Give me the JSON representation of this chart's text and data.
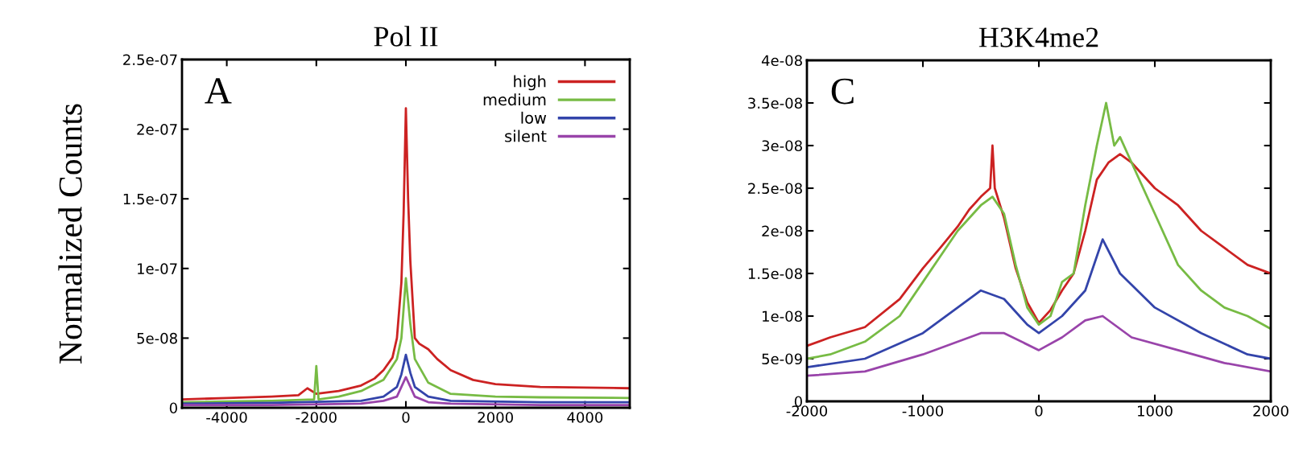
{
  "chart_data": [
    {
      "type": "line",
      "title": "Pol II",
      "ylabel": "Normalized Counts",
      "annotations": [
        "A"
      ],
      "legend": "top right",
      "grid": false,
      "xlim": [
        -5000,
        5000
      ],
      "xticks": [
        -4000,
        -2000,
        0,
        2000,
        4000
      ],
      "ylim": [
        0,
        2.5e-07
      ],
      "yticks": [
        {
          "value": 0,
          "label": "0"
        },
        {
          "value": 5e-08,
          "label": "5e-08"
        },
        {
          "value": 1e-07,
          "label": "1e-07"
        },
        {
          "value": 1.5e-07,
          "label": "1.5e-07"
        },
        {
          "value": 2e-07,
          "label": "2e-07"
        },
        {
          "value": 2.5e-07,
          "label": "2.5e-07"
        }
      ],
      "series": [
        {
          "name": "high",
          "color": "#cc2222",
          "x": [
            -5000,
            -4000,
            -3000,
            -2400,
            -2200,
            -2000,
            -1500,
            -1000,
            -700,
            -500,
            -300,
            -200,
            -100,
            -50,
            0,
            50,
            100,
            200,
            300,
            500,
            700,
            1000,
            1500,
            2000,
            3000,
            4000,
            5000
          ],
          "values": [
            6e-09,
            7e-09,
            8e-09,
            9e-09,
            1.4e-08,
            1e-08,
            1.2e-08,
            1.6e-08,
            2.1e-08,
            2.7e-08,
            3.6e-08,
            5e-08,
            9e-08,
            1.4e-07,
            2.15e-07,
            1.5e-07,
            1.05e-07,
            5e-08,
            4.6e-08,
            4.2e-08,
            3.5e-08,
            2.7e-08,
            2e-08,
            1.7e-08,
            1.5e-08,
            1.45e-08,
            1.4e-08
          ]
        },
        {
          "name": "medium",
          "color": "#77bb44",
          "x": [
            -5000,
            -4000,
            -3000,
            -2050,
            -2000,
            -1950,
            -1500,
            -1000,
            -500,
            -200,
            -100,
            0,
            100,
            200,
            500,
            1000,
            2000,
            3000,
            5000
          ],
          "values": [
            4e-09,
            4.5e-09,
            5e-09,
            6e-09,
            3e-08,
            6e-09,
            8e-09,
            1.2e-08,
            2e-08,
            3.5e-08,
            5e-08,
            9.3e-08,
            6e-08,
            3.5e-08,
            1.8e-08,
            1e-08,
            8e-09,
            7.5e-09,
            7e-09
          ]
        },
        {
          "name": "low",
          "color": "#3344aa",
          "x": [
            -5000,
            -3000,
            -1000,
            -500,
            -200,
            -100,
            0,
            100,
            200,
            500,
            1000,
            3000,
            5000
          ],
          "values": [
            3e-09,
            3.5e-09,
            5e-09,
            8e-09,
            1.5e-08,
            2.4e-08,
            3.8e-08,
            2.5e-08,
            1.5e-08,
            8e-09,
            5e-09,
            4e-09,
            4e-09
          ]
        },
        {
          "name": "silent",
          "color": "#9944aa",
          "x": [
            -5000,
            -3000,
            -1000,
            -500,
            -200,
            0,
            200,
            500,
            1000,
            3000,
            5000
          ],
          "values": [
            2e-09,
            2e-09,
            3e-09,
            5e-09,
            8e-09,
            2.2e-08,
            8e-09,
            4e-09,
            3e-09,
            2e-09,
            2e-09
          ]
        }
      ]
    },
    {
      "type": "line",
      "title": "H3K4me2",
      "annotations": [
        "C"
      ],
      "grid": false,
      "xlim": [
        -2000,
        2000
      ],
      "xticks": [
        -2000,
        -1000,
        0,
        1000,
        2000
      ],
      "ylim": [
        0,
        4e-08
      ],
      "yticks": [
        {
          "value": 0,
          "label": "0"
        },
        {
          "value": 5e-09,
          "label": "5e-09"
        },
        {
          "value": 1e-08,
          "label": "1e-08"
        },
        {
          "value": 1.5e-08,
          "label": "1.5e-08"
        },
        {
          "value": 2e-08,
          "label": "2e-08"
        },
        {
          "value": 2.5e-08,
          "label": "2.5e-08"
        },
        {
          "value": 3e-08,
          "label": "3e-08"
        },
        {
          "value": 3.5e-08,
          "label": "3.5e-08"
        },
        {
          "value": 4e-08,
          "label": "4e-08"
        }
      ],
      "series": [
        {
          "color": "#cc2222",
          "x": [
            -2000,
            -1800,
            -1500,
            -1200,
            -1000,
            -850,
            -700,
            -600,
            -500,
            -420,
            -400,
            -380,
            -300,
            -200,
            -100,
            0,
            100,
            200,
            300,
            400,
            500,
            600,
            700,
            800,
            1000,
            1200,
            1400,
            1600,
            1800,
            2000
          ],
          "values": [
            6.5e-09,
            7.5e-09,
            8.7e-09,
            1.2e-08,
            1.56e-08,
            1.8e-08,
            2.05e-08,
            2.25e-08,
            2.4e-08,
            2.5e-08,
            3e-08,
            2.5e-08,
            2.15e-08,
            1.56e-08,
            1.16e-08,
            9.2e-09,
            1.07e-08,
            1.3e-08,
            1.5e-08,
            2e-08,
            2.6e-08,
            2.8e-08,
            2.9e-08,
            2.8e-08,
            2.5e-08,
            2.3e-08,
            2e-08,
            1.8e-08,
            1.6e-08,
            1.5e-08
          ]
        },
        {
          "color": "#77bb44",
          "x": [
            -2000,
            -1800,
            -1500,
            -1200,
            -1000,
            -850,
            -700,
            -500,
            -400,
            -300,
            -200,
            -100,
            0,
            100,
            200,
            300,
            400,
            500,
            580,
            650,
            700,
            800,
            1000,
            1200,
            1400,
            1600,
            1800,
            2000
          ],
          "values": [
            5e-09,
            5.5e-09,
            7e-09,
            1e-08,
            1.4e-08,
            1.7e-08,
            2e-08,
            2.3e-08,
            2.4e-08,
            2.2e-08,
            1.6e-08,
            1.1e-08,
            9e-09,
            1e-08,
            1.4e-08,
            1.5e-08,
            2.3e-08,
            3e-08,
            3.5e-08,
            3e-08,
            3.1e-08,
            2.8e-08,
            2.2e-08,
            1.6e-08,
            1.3e-08,
            1.1e-08,
            1e-08,
            8.5e-09
          ]
        },
        {
          "color": "#3344aa",
          "x": [
            -2000,
            -1500,
            -1000,
            -700,
            -500,
            -300,
            -100,
            0,
            200,
            400,
            500,
            550,
            700,
            1000,
            1400,
            1800,
            2000
          ],
          "values": [
            4e-09,
            5e-09,
            8e-09,
            1.1e-08,
            1.3e-08,
            1.2e-08,
            9e-09,
            8e-09,
            1e-08,
            1.3e-08,
            1.7e-08,
            1.9e-08,
            1.5e-08,
            1.1e-08,
            8e-09,
            5.5e-09,
            5e-09
          ]
        },
        {
          "color": "#9944aa",
          "x": [
            -2000,
            -1500,
            -1000,
            -500,
            -300,
            0,
            200,
            400,
            550,
            800,
            1200,
            1600,
            2000
          ],
          "values": [
            3e-09,
            3.5e-09,
            5.5e-09,
            8e-09,
            8e-09,
            6e-09,
            7.5e-09,
            9.5e-09,
            1e-08,
            7.5e-09,
            6e-09,
            4.5e-09,
            3.5e-09
          ]
        }
      ]
    }
  ]
}
